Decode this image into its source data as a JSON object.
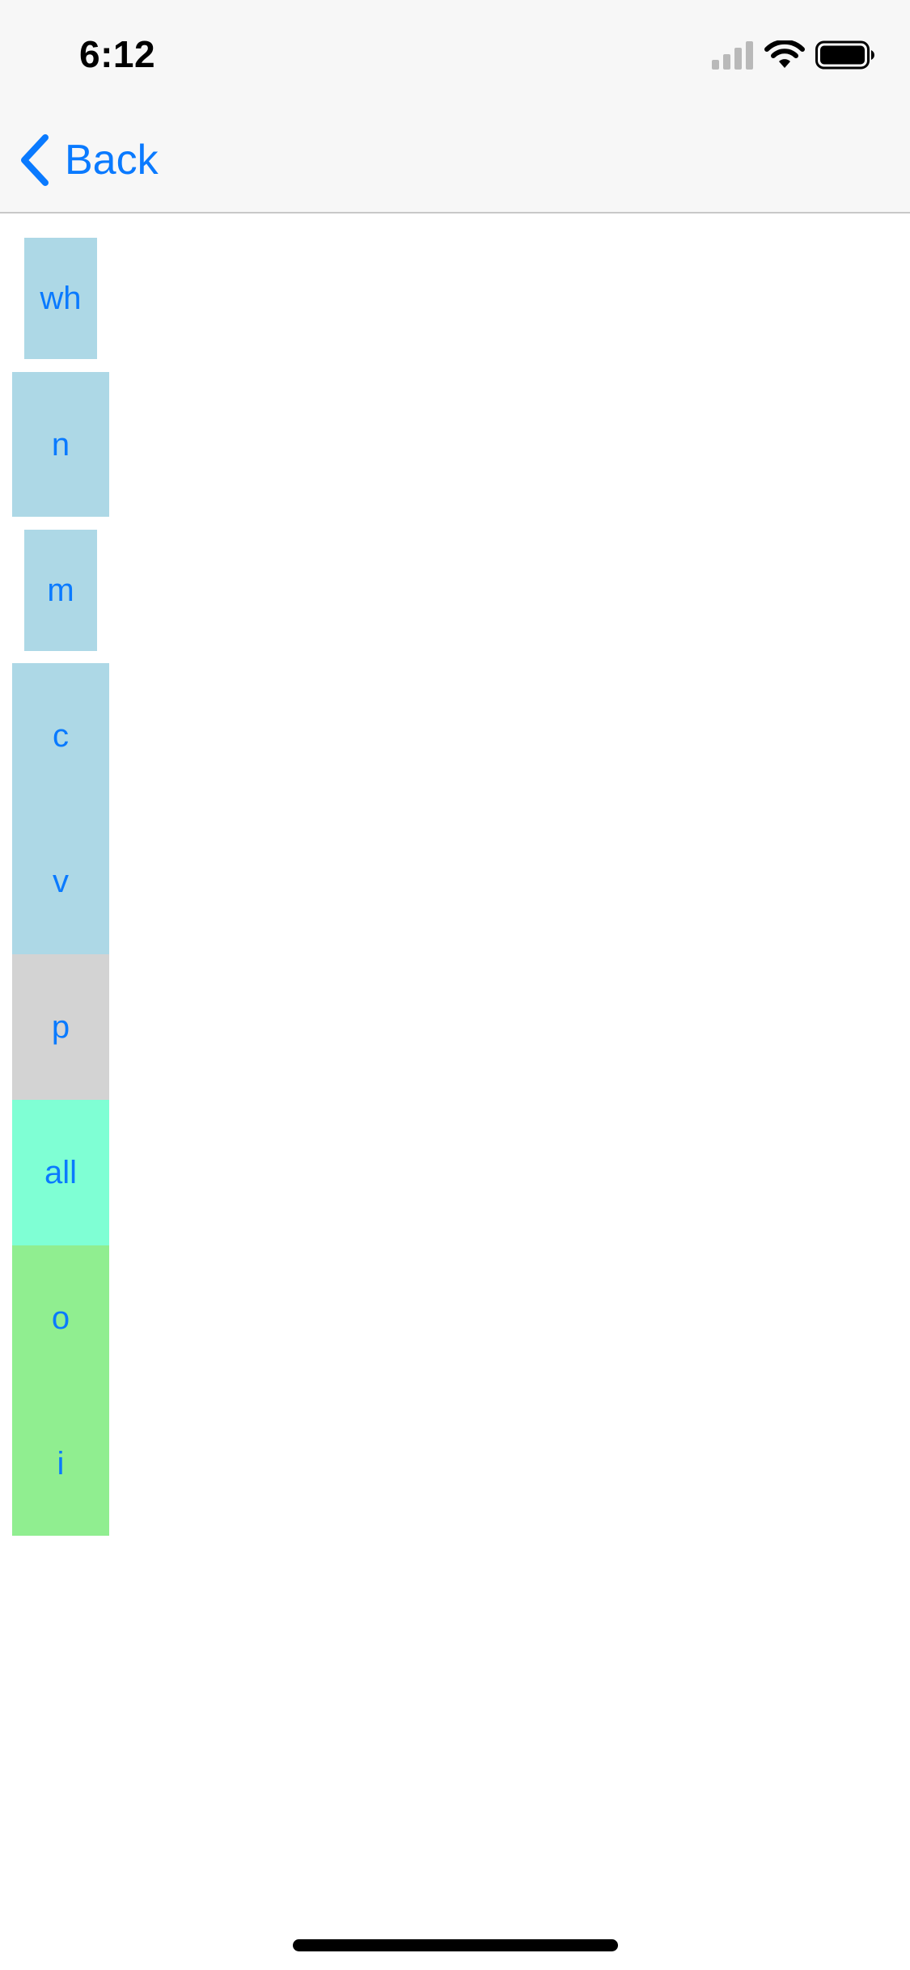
{
  "status_bar": {
    "time": "6:12",
    "icons": [
      "cellular-signal-icon",
      "wifi-icon",
      "battery-icon"
    ]
  },
  "nav": {
    "back_label": "Back",
    "back_icon": "chevron-left-icon"
  },
  "chips": [
    {
      "label": "wh",
      "color": "#add8e6"
    },
    {
      "label": "n",
      "color": "#add8e6"
    },
    {
      "label": "m",
      "color": "#add8e6"
    },
    {
      "label": "c",
      "color": "#add8e6"
    },
    {
      "label": "v",
      "color": "#add8e6"
    },
    {
      "label": "p",
      "color": "#d3d3d3"
    },
    {
      "label": "all",
      "color": "#7fffd4"
    },
    {
      "label": "o",
      "color": "#90ee90"
    },
    {
      "label": "i",
      "color": "#90ee90"
    }
  ],
  "colors": {
    "accent": "#0a7aff",
    "nav_background": "#f7f7f7"
  }
}
